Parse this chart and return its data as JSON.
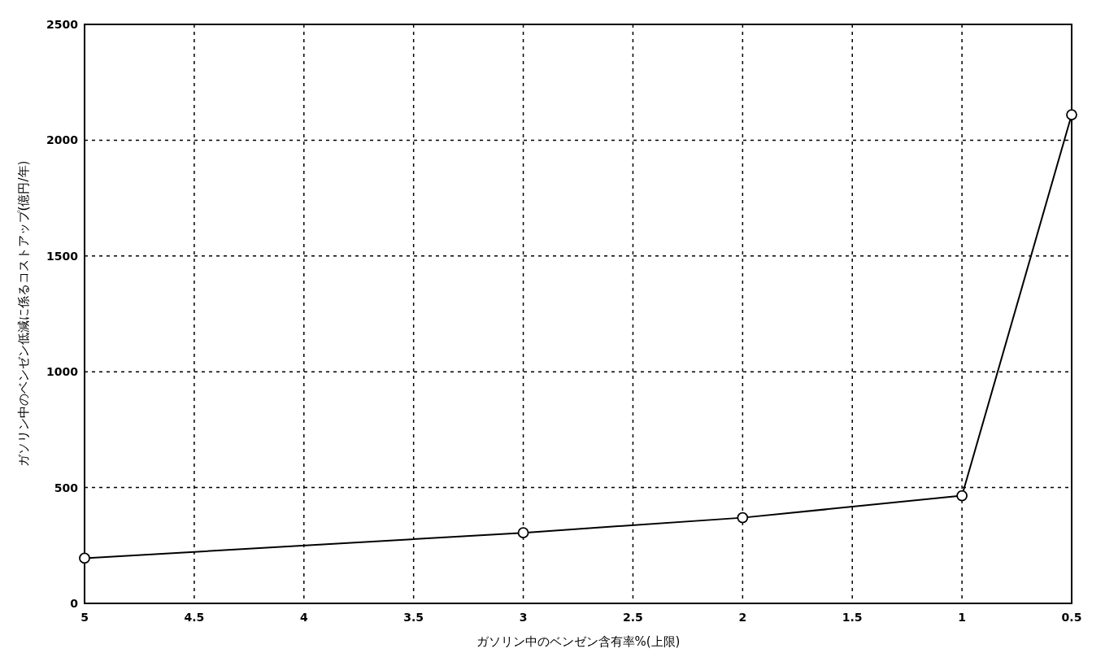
{
  "chart_data": {
    "type": "line",
    "xlabel": "ガソリン中のベンゼン含有率%(上限)",
    "ylabel": "ガソリン中のベンゼン低減に係るコストアップ(億円/年)",
    "x": [
      5,
      3,
      2,
      1,
      0.5
    ],
    "series": [
      {
        "color": "#000000",
        "values": [
          195,
          305,
          370,
          465,
          2110
        ]
      }
    ],
    "xlim": [
      5,
      0.5
    ],
    "xticks": [
      5,
      4.5,
      4,
      3.5,
      3,
      2.5,
      2,
      1.5,
      1,
      0.5
    ],
    "ylim": [
      0,
      2500
    ],
    "yticks": [
      0,
      500,
      1000,
      1500,
      2000,
      2500
    ],
    "grid": true,
    "marker": "circle",
    "line_style": "solid"
  }
}
